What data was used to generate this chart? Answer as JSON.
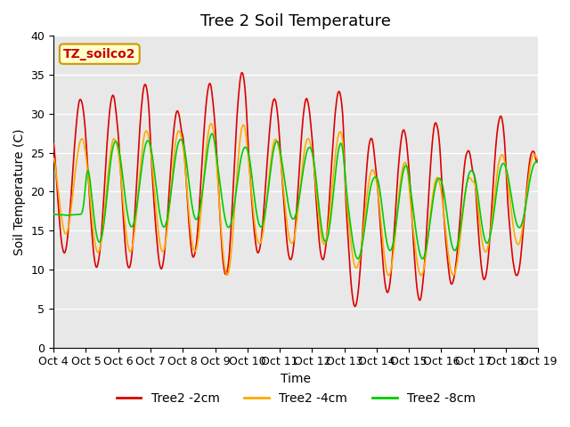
{
  "title": "Tree 2 Soil Temperature",
  "xlabel": "Time",
  "ylabel": "Soil Temperature (C)",
  "ylim": [
    0,
    40
  ],
  "xlim": [
    0,
    15
  ],
  "xtick_labels": [
    "Oct 4",
    "Oct 5",
    "Oct 6",
    "Oct 7",
    "Oct 8",
    "Oct 9",
    "Oct 10",
    "Oct 11",
    "Oct 12",
    "Oct 13",
    "Oct 14",
    "Oct 15",
    "Oct 16",
    "Oct 17",
    "Oct 18",
    "Oct 19"
  ],
  "annotation_text": "TZ_soilco2",
  "annotation_color": "#cc0000",
  "annotation_bg": "#ffffcc",
  "annotation_border": "#cc9900",
  "series": {
    "2cm": {
      "color": "#dd0000",
      "label": "Tree2 -2cm"
    },
    "4cm": {
      "color": "#ffaa00",
      "label": "Tree2 -4cm"
    },
    "8cm": {
      "color": "#00cc00",
      "label": "Tree2 -8cm"
    }
  },
  "bg_color": "#e8e8e8",
  "grid_color": "#ffffff",
  "title_fontsize": 13,
  "label_fontsize": 10,
  "tick_fontsize": 9,
  "legend_fontsize": 10
}
